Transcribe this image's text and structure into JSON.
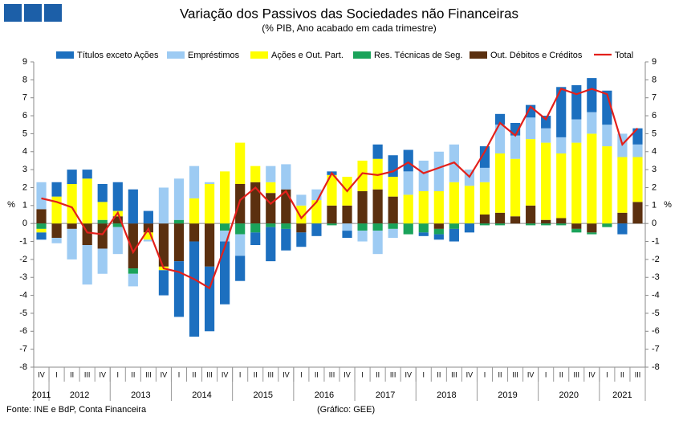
{
  "chart_data": {
    "type": "stacked_bar_line",
    "title": "Variação dos Passivos das Sociedades não Financeiras",
    "subtitle": "(% PIB, Ano acabado em cada trimestre)",
    "y_label": "%",
    "source": "Fonte: INE e BdP, Conta Financeira",
    "credit": "(Gráfico: GEE)",
    "categories": [
      "IV",
      "I",
      "II",
      "III",
      "IV",
      "I",
      "II",
      "III",
      "IV",
      "I",
      "II",
      "III",
      "IV",
      "I",
      "II",
      "III",
      "IV",
      "I",
      "II",
      "III",
      "IV",
      "I",
      "II",
      "III",
      "IV",
      "I",
      "II",
      "III",
      "IV",
      "I",
      "II",
      "III",
      "IV",
      "I",
      "II",
      "III",
      "IV",
      "I",
      "II",
      "III"
    ],
    "years": [
      "2011",
      "2012",
      "2012",
      "2012",
      "2012",
      "2013",
      "2013",
      "2013",
      "2013",
      "2014",
      "2014",
      "2014",
      "2014",
      "2015",
      "2015",
      "2015",
      "2015",
      "2016",
      "2016",
      "2016",
      "2016",
      "2017",
      "2017",
      "2017",
      "2017",
      "2018",
      "2018",
      "2018",
      "2018",
      "2019",
      "2019",
      "2019",
      "2019",
      "2020",
      "2020",
      "2020",
      "2020",
      "2021",
      "2021",
      "2021"
    ],
    "ylim": [
      -8,
      9
    ],
    "yticks": [
      -8,
      -7,
      -6,
      -5,
      -4,
      -3,
      -2,
      -1,
      0,
      1,
      2,
      3,
      4,
      5,
      6,
      7,
      8,
      9
    ],
    "series": [
      {
        "name": "Títulos exceto Ações",
        "color": "#1c6fbf",
        "values": [
          -0.4,
          0.8,
          0.8,
          0.5,
          1.0,
          1.6,
          1.9,
          0.7,
          -1.4,
          -3.1,
          -5.3,
          -3.6,
          -3.5,
          -1.4,
          -0.7,
          -1.9,
          -1.2,
          -0.8,
          -0.7,
          0.2,
          -0.4,
          0,
          0.8,
          1.2,
          1.2,
          -0.2,
          -0.3,
          -0.7,
          -0.5,
          1.2,
          0.6,
          0.7,
          0.7,
          0.7,
          2.8,
          1.9,
          1.9,
          1.9,
          -0.6,
          0.9
        ]
      },
      {
        "name": "Empréstimos",
        "color": "#9dcbf3",
        "values": [
          1.5,
          -0.3,
          -1.7,
          -2.2,
          -1.4,
          -1.5,
          -0.7,
          -0.1,
          2.0,
          2.3,
          1.8,
          0.1,
          -0.6,
          -1.2,
          0,
          0.9,
          1.4,
          0.6,
          0.6,
          0,
          -0.4,
          -0.6,
          -1.3,
          -0.5,
          1.3,
          1.7,
          2.2,
          2.1,
          0.9,
          0.8,
          1.6,
          1.3,
          1.2,
          0.8,
          0.9,
          1.3,
          1.2,
          1.2,
          1.3,
          0.7
        ]
      },
      {
        "name": "Ações e Out. Part.",
        "color": "#ffff00",
        "values": [
          -0.2,
          1.5,
          2.2,
          2.5,
          1.0,
          0.3,
          0,
          -0.4,
          -0.2,
          0,
          1.4,
          2.2,
          2.9,
          2.3,
          0.9,
          0.6,
          0,
          1.0,
          1.3,
          1.7,
          1.6,
          1.7,
          1.7,
          1.1,
          1.6,
          1.8,
          1.8,
          2.3,
          2.1,
          1.8,
          3.3,
          3.2,
          3.7,
          4.3,
          3.6,
          4.5,
          5.0,
          4.3,
          3.1,
          2.5
        ]
      },
      {
        "name": "Res. Técnicas de Seg.",
        "color": "#1aa35a",
        "values": [
          -0.3,
          0,
          0,
          0,
          0.2,
          -0.2,
          -0.3,
          0,
          0,
          0.2,
          0,
          0,
          -0.4,
          -0.6,
          -0.5,
          -0.2,
          -0.3,
          0,
          0,
          -0.1,
          0,
          -0.4,
          -0.4,
          -0.3,
          -0.6,
          -0.5,
          -0.3,
          -0.3,
          0,
          -0.1,
          -0.1,
          0,
          -0.1,
          -0.1,
          -0.1,
          -0.2,
          -0.1,
          -0.2,
          0,
          0
        ]
      },
      {
        "name": "Out. Débitos e Créditos",
        "color": "#5b300f",
        "values": [
          0.8,
          -0.8,
          -0.3,
          -1.2,
          -1.4,
          0.4,
          -2.5,
          -0.5,
          -2.4,
          -2.1,
          -1.0,
          -2.4,
          0,
          2.2,
          2.3,
          1.7,
          1.9,
          -0.5,
          0,
          1.0,
          1.0,
          1.8,
          1.9,
          1.5,
          0,
          0,
          -0.3,
          0,
          0,
          0.5,
          0.6,
          0.4,
          1.0,
          0.2,
          0.3,
          -0.3,
          -0.5,
          0,
          0.6,
          1.2
        ]
      },
      {
        "name": "Total",
        "color": "#e3201b",
        "type": "line",
        "values": [
          1.4,
          1.2,
          0.9,
          -0.5,
          -0.6,
          0.6,
          -1.6,
          -0.3,
          -2.5,
          -2.7,
          -3.1,
          -3.6,
          -1.3,
          1.3,
          2.0,
          1.1,
          1.8,
          0.3,
          1.2,
          2.8,
          1.8,
          2.8,
          2.7,
          2.9,
          3.4,
          2.8,
          3.1,
          3.4,
          2.6,
          4.0,
          5.6,
          4.9,
          6.5,
          5.8,
          7.5,
          7.2,
          7.5,
          7.2,
          4.4,
          5.3
        ]
      }
    ]
  }
}
